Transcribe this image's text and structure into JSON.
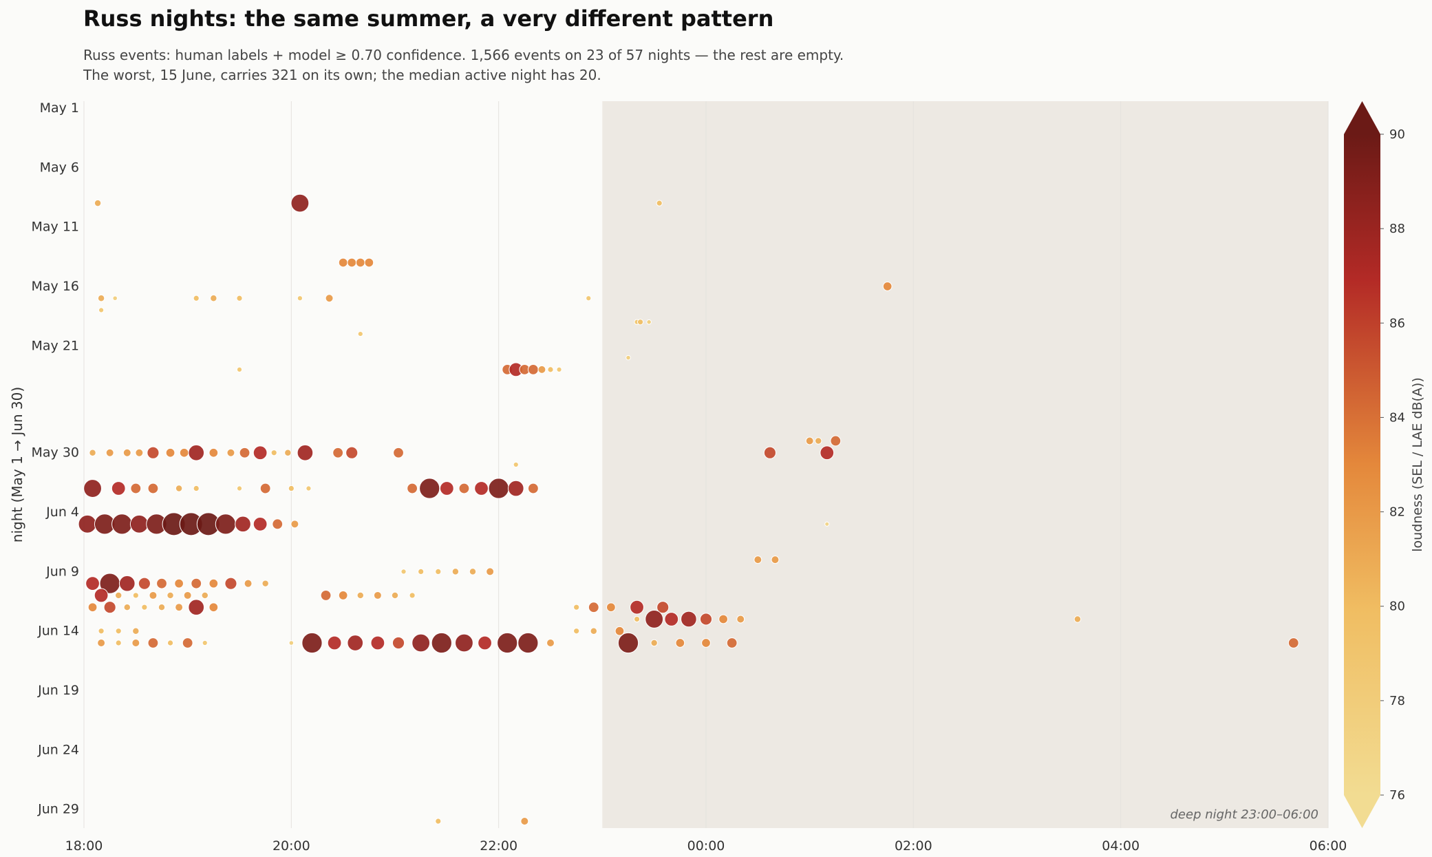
{
  "title": "Russ nights: the same summer, a very different pattern",
  "subtitle_lines": [
    "Russ events: human labels + model ≥ 0.70 confidence.  1,566 events on 23 of 57 nights — the rest are empty.",
    "The worst, 15 June, carries 321 on its own; the median active night has 20."
  ],
  "colors": {
    "background": "#fbfbf9",
    "deep_night_band": "#ede9e3",
    "gridline": "#e4e2de",
    "scale": [
      "#f2dc92",
      "#f0bd62",
      "#e4883b",
      "#b32a26",
      "#6b1a16"
    ]
  },
  "chart_data": {
    "type": "scatter",
    "ylabel": "night (May 1 → Jun 30)",
    "xlabel": "",
    "x_range": [
      "18:00",
      "06:00"
    ],
    "x_ticks": [
      "18:00",
      "20:00",
      "22:00",
      "00:00",
      "02:00",
      "04:00",
      "06:00"
    ],
    "y_ticks": [
      "May 1",
      "May 6",
      "May 11",
      "May 16",
      "May 21",
      "May 30",
      "Jun 4",
      "Jun 9",
      "Jun 14",
      "Jun 19",
      "Jun 24",
      "Jun 29"
    ],
    "y_range": [
      "May 1",
      "Jun 30"
    ],
    "grid": "vertical lines",
    "annotation": {
      "label": "deep night  23:00–06:00",
      "start": "23:00",
      "end": "06:00"
    },
    "colorbar": {
      "label": "loudness  (SEL / LAE dB(A))",
      "range": [
        76,
        90
      ],
      "ticks": [
        76,
        78,
        80,
        82,
        84,
        86,
        88,
        90
      ],
      "extend": "both"
    },
    "points": [
      {
        "night": "May 9",
        "time": "18:08",
        "db": 81
      },
      {
        "night": "May 9",
        "time": "20:05",
        "db": 88
      },
      {
        "night": "May 9",
        "time": "23:33",
        "db": 80
      },
      {
        "night": "May 14",
        "time": "20:30",
        "db": 83
      },
      {
        "night": "May 14",
        "time": "20:35",
        "db": 83
      },
      {
        "night": "May 14",
        "time": "20:40",
        "db": 83
      },
      {
        "night": "May 14",
        "time": "20:45",
        "db": 83
      },
      {
        "night": "May 16",
        "time": "01:45",
        "db": 83
      },
      {
        "night": "May 17",
        "time": "18:10",
        "db": 81
      },
      {
        "night": "May 17",
        "time": "18:18",
        "db": 78
      },
      {
        "night": "May 17",
        "time": "19:05",
        "db": 80
      },
      {
        "night": "May 17",
        "time": "19:15",
        "db": 81
      },
      {
        "night": "May 17",
        "time": "19:30",
        "db": 80
      },
      {
        "night": "May 17",
        "time": "20:05",
        "db": 79
      },
      {
        "night": "May 17",
        "time": "20:22",
        "db": 82
      },
      {
        "night": "May 17",
        "time": "22:52",
        "db": 79
      },
      {
        "night": "May 18",
        "time": "18:10",
        "db": 79
      },
      {
        "night": "May 19",
        "time": "23:20",
        "db": 79
      },
      {
        "night": "May 19",
        "time": "23:22",
        "db": 80
      },
      {
        "night": "May 19",
        "time": "23:27",
        "db": 78
      },
      {
        "night": "May 20",
        "time": "20:40",
        "db": 79
      },
      {
        "night": "May 22",
        "time": "23:15",
        "db": 78
      },
      {
        "night": "May 23",
        "time": "19:30",
        "db": 79
      },
      {
        "night": "May 23",
        "time": "22:05",
        "db": 84
      },
      {
        "night": "May 23",
        "time": "22:10",
        "db": 86
      },
      {
        "night": "May 23",
        "time": "22:15",
        "db": 84
      },
      {
        "night": "May 23",
        "time": "22:20",
        "db": 84
      },
      {
        "night": "May 23",
        "time": "22:25",
        "db": 82
      },
      {
        "night": "May 23",
        "time": "22:30",
        "db": 80
      },
      {
        "night": "May 23",
        "time": "22:35",
        "db": 79
      },
      {
        "night": "May 29",
        "time": "01:00",
        "db": 82
      },
      {
        "night": "May 29",
        "time": "01:05",
        "db": 81
      },
      {
        "night": "May 29",
        "time": "01:15",
        "db": 84
      },
      {
        "night": "May 30",
        "time": "18:05",
        "db": 81
      },
      {
        "night": "May 30",
        "time": "18:15",
        "db": 82
      },
      {
        "night": "May 30",
        "time": "18:25",
        "db": 82
      },
      {
        "night": "May 30",
        "time": "18:32",
        "db": 82
      },
      {
        "night": "May 30",
        "time": "18:40",
        "db": 85
      },
      {
        "night": "May 30",
        "time": "18:50",
        "db": 83
      },
      {
        "night": "May 30",
        "time": "18:58",
        "db": 83
      },
      {
        "night": "May 30",
        "time": "19:05",
        "db": 87
      },
      {
        "night": "May 30",
        "time": "19:15",
        "db": 83
      },
      {
        "night": "May 30",
        "time": "19:25",
        "db": 82
      },
      {
        "night": "May 30",
        "time": "19:33",
        "db": 84
      },
      {
        "night": "May 30",
        "time": "19:42",
        "db": 86
      },
      {
        "night": "May 30",
        "time": "19:50",
        "db": 80
      },
      {
        "night": "May 30",
        "time": "19:58",
        "db": 81
      },
      {
        "night": "May 30",
        "time": "20:08",
        "db": 87
      },
      {
        "night": "May 30",
        "time": "20:27",
        "db": 84
      },
      {
        "night": "May 30",
        "time": "20:35",
        "db": 85
      },
      {
        "night": "May 30",
        "time": "21:02",
        "db": 84
      },
      {
        "night": "May 30",
        "time": "00:37",
        "db": 85
      },
      {
        "night": "May 30",
        "time": "01:10",
        "db": 86
      },
      {
        "night": "May 31",
        "time": "22:10",
        "db": 79
      },
      {
        "night": "Jun 2",
        "time": "18:05",
        "db": 88
      },
      {
        "night": "Jun 2",
        "time": "18:20",
        "db": 86
      },
      {
        "night": "Jun 2",
        "time": "18:30",
        "db": 84
      },
      {
        "night": "Jun 2",
        "time": "18:40",
        "db": 84
      },
      {
        "night": "Jun 2",
        "time": "18:55",
        "db": 81
      },
      {
        "night": "Jun 2",
        "time": "19:05",
        "db": 80
      },
      {
        "night": "Jun 2",
        "time": "19:30",
        "db": 79
      },
      {
        "night": "Jun 2",
        "time": "19:45",
        "db": 84
      },
      {
        "night": "Jun 2",
        "time": "20:00",
        "db": 80
      },
      {
        "night": "Jun 2",
        "time": "20:10",
        "db": 79
      },
      {
        "night": "Jun 2",
        "time": "21:10",
        "db": 84
      },
      {
        "night": "Jun 2",
        "time": "21:20",
        "db": 89
      },
      {
        "night": "Jun 2",
        "time": "21:30",
        "db": 86
      },
      {
        "night": "Jun 2",
        "time": "21:40",
        "db": 84
      },
      {
        "night": "Jun 2",
        "time": "21:50",
        "db": 86
      },
      {
        "night": "Jun 2",
        "time": "22:00",
        "db": 89
      },
      {
        "night": "Jun 2",
        "time": "22:10",
        "db": 87
      },
      {
        "night": "Jun 2",
        "time": "22:20",
        "db": 84
      },
      {
        "night": "Jun 5",
        "time": "18:02",
        "db": 88
      },
      {
        "night": "Jun 5",
        "time": "18:12",
        "db": 89
      },
      {
        "night": "Jun 5",
        "time": "18:22",
        "db": 89
      },
      {
        "night": "Jun 5",
        "time": "18:32",
        "db": 88
      },
      {
        "night": "Jun 5",
        "time": "18:42",
        "db": 89
      },
      {
        "night": "Jun 5",
        "time": "18:52",
        "db": 90
      },
      {
        "night": "Jun 5",
        "time": "19:02",
        "db": 90
      },
      {
        "night": "Jun 5",
        "time": "19:12",
        "db": 90
      },
      {
        "night": "Jun 5",
        "time": "19:22",
        "db": 89
      },
      {
        "night": "Jun 5",
        "time": "19:32",
        "db": 87
      },
      {
        "night": "Jun 5",
        "time": "19:42",
        "db": 86
      },
      {
        "night": "Jun 5",
        "time": "19:52",
        "db": 84
      },
      {
        "night": "Jun 5",
        "time": "20:02",
        "db": 82
      },
      {
        "night": "Jun 5",
        "time": "01:10",
        "db": 77
      },
      {
        "night": "Jun 8",
        "time": "00:30",
        "db": 82
      },
      {
        "night": "Jun 8",
        "time": "00:40",
        "db": 82
      },
      {
        "night": "Jun 9",
        "time": "21:05",
        "db": 79
      },
      {
        "night": "Jun 9",
        "time": "21:15",
        "db": 80
      },
      {
        "night": "Jun 9",
        "time": "21:25",
        "db": 80
      },
      {
        "night": "Jun 9",
        "time": "21:35",
        "db": 81
      },
      {
        "night": "Jun 9",
        "time": "21:45",
        "db": 81
      },
      {
        "night": "Jun 9",
        "time": "21:55",
        "db": 82
      },
      {
        "night": "Jun 10",
        "time": "18:05",
        "db": 86
      },
      {
        "night": "Jun 10",
        "time": "18:15",
        "db": 89
      },
      {
        "night": "Jun 10",
        "time": "18:25",
        "db": 87
      },
      {
        "night": "Jun 10",
        "time": "18:35",
        "db": 85
      },
      {
        "night": "Jun 10",
        "time": "18:45",
        "db": 84
      },
      {
        "night": "Jun 10",
        "time": "18:55",
        "db": 83
      },
      {
        "night": "Jun 10",
        "time": "19:05",
        "db": 84
      },
      {
        "night": "Jun 10",
        "time": "19:15",
        "db": 83
      },
      {
        "night": "Jun 10",
        "time": "19:25",
        "db": 85
      },
      {
        "night": "Jun 10",
        "time": "19:35",
        "db": 82
      },
      {
        "night": "Jun 10",
        "time": "19:45",
        "db": 81
      },
      {
        "night": "Jun 11",
        "time": "18:10",
        "db": 86
      },
      {
        "night": "Jun 11",
        "time": "18:20",
        "db": 81
      },
      {
        "night": "Jun 11",
        "time": "18:30",
        "db": 80
      },
      {
        "night": "Jun 11",
        "time": "18:40",
        "db": 82
      },
      {
        "night": "Jun 11",
        "time": "18:50",
        "db": 81
      },
      {
        "night": "Jun 11",
        "time": "19:00",
        "db": 82
      },
      {
        "night": "Jun 11",
        "time": "19:10",
        "db": 81
      },
      {
        "night": "Jun 11",
        "time": "20:20",
        "db": 84
      },
      {
        "night": "Jun 11",
        "time": "20:30",
        "db": 83
      },
      {
        "night": "Jun 11",
        "time": "20:40",
        "db": 81
      },
      {
        "night": "Jun 11",
        "time": "20:50",
        "db": 82
      },
      {
        "night": "Jun 11",
        "time": "21:00",
        "db": 81
      },
      {
        "night": "Jun 11",
        "time": "21:10",
        "db": 80
      },
      {
        "night": "Jun 12",
        "time": "18:05",
        "db": 83
      },
      {
        "night": "Jun 12",
        "time": "18:15",
        "db": 85
      },
      {
        "night": "Jun 12",
        "time": "18:25",
        "db": 81
      },
      {
        "night": "Jun 12",
        "time": "18:35",
        "db": 80
      },
      {
        "night": "Jun 12",
        "time": "18:45",
        "db": 81
      },
      {
        "night": "Jun 12",
        "time": "18:55",
        "db": 82
      },
      {
        "night": "Jun 12",
        "time": "19:05",
        "db": 87
      },
      {
        "night": "Jun 12",
        "time": "19:15",
        "db": 83
      },
      {
        "night": "Jun 12",
        "time": "22:45",
        "db": 80
      },
      {
        "night": "Jun 12",
        "time": "22:55",
        "db": 84
      },
      {
        "night": "Jun 12",
        "time": "23:05",
        "db": 83
      },
      {
        "night": "Jun 12",
        "time": "23:20",
        "db": 86
      },
      {
        "night": "Jun 12",
        "time": "23:35",
        "db": 85
      },
      {
        "night": "Jun 13",
        "time": "23:20",
        "db": 80
      },
      {
        "night": "Jun 13",
        "time": "23:30",
        "db": 88
      },
      {
        "night": "Jun 13",
        "time": "23:40",
        "db": 86
      },
      {
        "night": "Jun 13",
        "time": "23:50",
        "db": 87
      },
      {
        "night": "Jun 13",
        "time": "00:00",
        "db": 85
      },
      {
        "night": "Jun 13",
        "time": "00:10",
        "db": 83
      },
      {
        "night": "Jun 13",
        "time": "00:20",
        "db": 82
      },
      {
        "night": "Jun 13",
        "time": "03:35",
        "db": 81
      },
      {
        "night": "Jun 14",
        "time": "18:10",
        "db": 80
      },
      {
        "night": "Jun 14",
        "time": "18:20",
        "db": 80
      },
      {
        "night": "Jun 14",
        "time": "18:30",
        "db": 81
      },
      {
        "night": "Jun 14",
        "time": "22:45",
        "db": 80
      },
      {
        "night": "Jun 14",
        "time": "22:55",
        "db": 81
      },
      {
        "night": "Jun 14",
        "time": "23:10",
        "db": 83
      },
      {
        "night": "Jun 15",
        "time": "18:10",
        "db": 82
      },
      {
        "night": "Jun 15",
        "time": "18:20",
        "db": 80
      },
      {
        "night": "Jun 15",
        "time": "18:30",
        "db": 82
      },
      {
        "night": "Jun 15",
        "time": "18:40",
        "db": 84
      },
      {
        "night": "Jun 15",
        "time": "18:50",
        "db": 80
      },
      {
        "night": "Jun 15",
        "time": "19:00",
        "db": 84
      },
      {
        "night": "Jun 15",
        "time": "19:10",
        "db": 79
      },
      {
        "night": "Jun 15",
        "time": "20:00",
        "db": 78
      },
      {
        "night": "Jun 15",
        "time": "20:12",
        "db": 89
      },
      {
        "night": "Jun 15",
        "time": "20:25",
        "db": 86
      },
      {
        "night": "Jun 15",
        "time": "20:37",
        "db": 87
      },
      {
        "night": "Jun 15",
        "time": "20:50",
        "db": 86
      },
      {
        "night": "Jun 15",
        "time": "21:02",
        "db": 85
      },
      {
        "night": "Jun 15",
        "time": "21:15",
        "db": 88
      },
      {
        "night": "Jun 15",
        "time": "21:27",
        "db": 89
      },
      {
        "night": "Jun 15",
        "time": "21:40",
        "db": 88
      },
      {
        "night": "Jun 15",
        "time": "21:52",
        "db": 86
      },
      {
        "night": "Jun 15",
        "time": "22:05",
        "db": 89
      },
      {
        "night": "Jun 15",
        "time": "22:17",
        "db": 89
      },
      {
        "night": "Jun 15",
        "time": "22:30",
        "db": 82
      },
      {
        "night": "Jun 15",
        "time": "23:15",
        "db": 89
      },
      {
        "night": "Jun 15",
        "time": "23:30",
        "db": 81
      },
      {
        "night": "Jun 15",
        "time": "23:45",
        "db": 83
      },
      {
        "night": "Jun 15",
        "time": "00:00",
        "db": 83
      },
      {
        "night": "Jun 15",
        "time": "00:15",
        "db": 84
      },
      {
        "night": "Jun 15",
        "time": "05:40",
        "db": 84
      },
      {
        "night": "Jun 30",
        "time": "21:25",
        "db": 80
      },
      {
        "night": "Jun 30",
        "time": "22:15",
        "db": 82
      }
    ]
  }
}
